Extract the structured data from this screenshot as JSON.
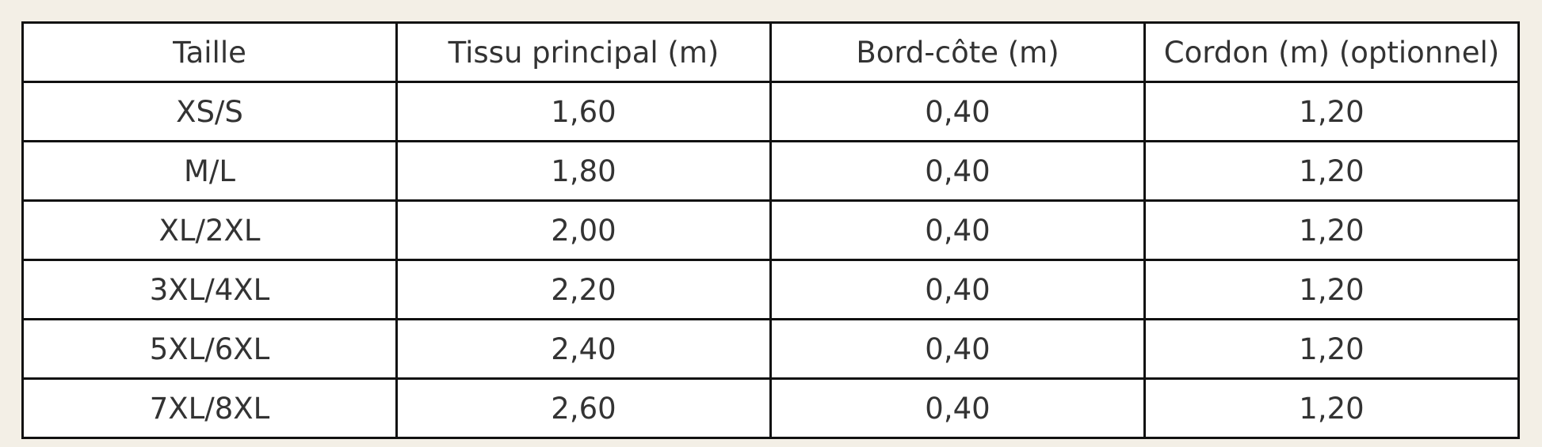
{
  "table": {
    "header": [
      "Taille",
      "Tissu principal (m)",
      "Bord-côte (m)",
      "Cordon (m) (optionnel)"
    ],
    "rows": [
      [
        "XS/S",
        "1,60",
        "0,40",
        "1,20"
      ],
      [
        "M/L",
        "1,80",
        "0,40",
        "1,20"
      ],
      [
        "XL/2XL",
        "2,00",
        "0,40",
        "1,20"
      ],
      [
        "3XL/4XL",
        "2,20",
        "0,40",
        "1,20"
      ],
      [
        "5XL/6XL",
        "2,40",
        "0,40",
        "1,20"
      ],
      [
        "7XL/8XL",
        "2,60",
        "0,40",
        "1,20"
      ]
    ]
  }
}
